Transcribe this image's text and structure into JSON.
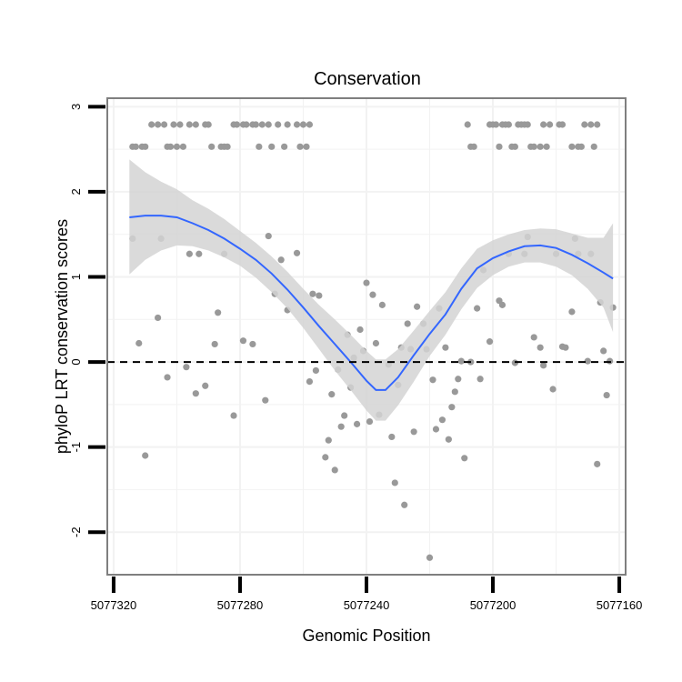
{
  "chart_data": {
    "type": "scatter",
    "title": "Conservation",
    "xlabel": "Genomic Position",
    "ylabel": "phyloP LRT conservation scores",
    "x_reversed": true,
    "xlim": [
      5077322,
      5077158
    ],
    "ylim": [
      -2.5,
      3.1
    ],
    "x_ticks": [
      5077320,
      5077280,
      5077240,
      5077200,
      5077160
    ],
    "x_tick_labels": [
      "5077320",
      "5077280",
      "5077240",
      "5077200",
      "5077160"
    ],
    "y_ticks": [
      -2,
      -1,
      0,
      1,
      2,
      3
    ],
    "y_tick_labels": [
      "-2",
      "-1",
      "0",
      "1",
      "2",
      "3"
    ],
    "reference_line": {
      "y": 0,
      "style": "dashed"
    },
    "grid": true,
    "colors": {
      "points": "#999999",
      "smooth_line": "#3366ff",
      "ribbon": "#d3d3d3",
      "grid": "#f2f2f2",
      "frame": "#7f7f7f"
    },
    "points": [
      {
        "x": 5077314,
        "y": 1.45
      },
      {
        "x": 5077312,
        "y": 0.22
      },
      {
        "x": 5077310,
        "y": -1.1
      },
      {
        "x": 5077306,
        "y": 0.52
      },
      {
        "x": 5077305,
        "y": 1.45
      },
      {
        "x": 5077303,
        "y": -0.18
      },
      {
        "x": 5077297,
        "y": -0.06
      },
      {
        "x": 5077296,
        "y": 1.27
      },
      {
        "x": 5077294,
        "y": -0.37
      },
      {
        "x": 5077293,
        "y": 1.27
      },
      {
        "x": 5077291,
        "y": -0.28
      },
      {
        "x": 5077288,
        "y": 0.21
      },
      {
        "x": 5077287,
        "y": 0.58
      },
      {
        "x": 5077285,
        "y": 1.27
      },
      {
        "x": 5077282,
        "y": -0.63
      },
      {
        "x": 5077279,
        "y": 0.25
      },
      {
        "x": 5077276,
        "y": 0.21
      },
      {
        "x": 5077272,
        "y": -0.45
      },
      {
        "x": 5077271,
        "y": 1.48
      },
      {
        "x": 5077269,
        "y": 0.8
      },
      {
        "x": 5077267,
        "y": 1.2
      },
      {
        "x": 5077265,
        "y": 0.61
      },
      {
        "x": 5077262,
        "y": 1.28
      },
      {
        "x": 5077258,
        "y": -0.23
      },
      {
        "x": 5077257,
        "y": 0.8
      },
      {
        "x": 5077256,
        "y": -0.1
      },
      {
        "x": 5077255,
        "y": 0.78
      },
      {
        "x": 5077253,
        "y": -1.12
      },
      {
        "x": 5077252,
        "y": -0.92
      },
      {
        "x": 5077251,
        "y": -0.38
      },
      {
        "x": 5077250,
        "y": -1.27
      },
      {
        "x": 5077249,
        "y": -0.09
      },
      {
        "x": 5077248,
        "y": -0.76
      },
      {
        "x": 5077247,
        "y": -0.63
      },
      {
        "x": 5077246,
        "y": 0.32
      },
      {
        "x": 5077245,
        "y": -0.3
      },
      {
        "x": 5077244,
        "y": 0.05
      },
      {
        "x": 5077243,
        "y": -0.73
      },
      {
        "x": 5077242,
        "y": 0.38
      },
      {
        "x": 5077241,
        "y": 0.13
      },
      {
        "x": 5077240,
        "y": 0.93
      },
      {
        "x": 5077239,
        "y": -0.7
      },
      {
        "x": 5077238,
        "y": 0.79
      },
      {
        "x": 5077237,
        "y": 0.22
      },
      {
        "x": 5077236,
        "y": -0.62
      },
      {
        "x": 5077235,
        "y": 0.67
      },
      {
        "x": 5077233,
        "y": -0.03
      },
      {
        "x": 5077232,
        "y": -0.88
      },
      {
        "x": 5077231,
        "y": -1.42
      },
      {
        "x": 5077230,
        "y": -0.27
      },
      {
        "x": 5077229,
        "y": 0.17
      },
      {
        "x": 5077228,
        "y": -1.68
      },
      {
        "x": 5077227,
        "y": 0.45
      },
      {
        "x": 5077226,
        "y": 0.15
      },
      {
        "x": 5077225,
        "y": -0.82
      },
      {
        "x": 5077224,
        "y": 0.65
      },
      {
        "x": 5077222,
        "y": 0.45
      },
      {
        "x": 5077221,
        "y": 0.15
      },
      {
        "x": 5077220,
        "y": -2.3
      },
      {
        "x": 5077219,
        "y": -0.21
      },
      {
        "x": 5077218,
        "y": -0.79
      },
      {
        "x": 5077217,
        "y": 0.63
      },
      {
        "x": 5077216,
        "y": -0.68
      },
      {
        "x": 5077215,
        "y": 0.17
      },
      {
        "x": 5077214,
        "y": -0.91
      },
      {
        "x": 5077213,
        "y": -0.53
      },
      {
        "x": 5077212,
        "y": -0.35
      },
      {
        "x": 5077211,
        "y": -0.2
      },
      {
        "x": 5077210,
        "y": 0.01
      },
      {
        "x": 5077209,
        "y": -1.13
      },
      {
        "x": 5077207,
        "y": 0.0
      },
      {
        "x": 5077205,
        "y": 0.63
      },
      {
        "x": 5077204,
        "y": -0.2
      },
      {
        "x": 5077203,
        "y": 1.08
      },
      {
        "x": 5077201,
        "y": 0.24
      },
      {
        "x": 5077198,
        "y": 0.72
      },
      {
        "x": 5077197,
        "y": 0.67
      },
      {
        "x": 5077195,
        "y": 1.27
      },
      {
        "x": 5077193,
        "y": -0.01
      },
      {
        "x": 5077190,
        "y": 1.27
      },
      {
        "x": 5077189,
        "y": 1.47
      },
      {
        "x": 5077187,
        "y": 0.29
      },
      {
        "x": 5077185,
        "y": 0.17
      },
      {
        "x": 5077184,
        "y": -0.04
      },
      {
        "x": 5077181,
        "y": -0.32
      },
      {
        "x": 5077180,
        "y": 1.27
      },
      {
        "x": 5077178,
        "y": 0.18
      },
      {
        "x": 5077177,
        "y": 0.17
      },
      {
        "x": 5077175,
        "y": 0.59
      },
      {
        "x": 5077174,
        "y": 1.45
      },
      {
        "x": 5077173,
        "y": 1.27
      },
      {
        "x": 5077170,
        "y": 0.01
      },
      {
        "x": 5077169,
        "y": 1.27
      },
      {
        "x": 5077167,
        "y": -1.2
      },
      {
        "x": 5077166,
        "y": 0.7
      },
      {
        "x": 5077165,
        "y": 0.13
      },
      {
        "x": 5077164,
        "y": -0.39
      },
      {
        "x": 5077163,
        "y": 0.01
      },
      {
        "x": 5077162,
        "y": 0.64
      },
      {
        "x": 5077314,
        "y": 2.53
      },
      {
        "x": 5077313,
        "y": 2.53
      },
      {
        "x": 5077311,
        "y": 2.53
      },
      {
        "x": 5077310,
        "y": 2.53
      },
      {
        "x": 5077308,
        "y": 2.79
      },
      {
        "x": 5077306,
        "y": 2.79
      },
      {
        "x": 5077304,
        "y": 2.79
      },
      {
        "x": 5077303,
        "y": 2.53
      },
      {
        "x": 5077302,
        "y": 2.53
      },
      {
        "x": 5077301,
        "y": 2.79
      },
      {
        "x": 5077300,
        "y": 2.53
      },
      {
        "x": 5077299,
        "y": 2.79
      },
      {
        "x": 5077298,
        "y": 2.53
      },
      {
        "x": 5077296,
        "y": 2.79
      },
      {
        "x": 5077294,
        "y": 2.79
      },
      {
        "x": 5077291,
        "y": 2.79
      },
      {
        "x": 5077290,
        "y": 2.79
      },
      {
        "x": 5077289,
        "y": 2.53
      },
      {
        "x": 5077286,
        "y": 2.53
      },
      {
        "x": 5077285,
        "y": 2.53
      },
      {
        "x": 5077284,
        "y": 2.53
      },
      {
        "x": 5077282,
        "y": 2.79
      },
      {
        "x": 5077281,
        "y": 2.79
      },
      {
        "x": 5077279,
        "y": 2.79
      },
      {
        "x": 5077278,
        "y": 2.79
      },
      {
        "x": 5077276,
        "y": 2.79
      },
      {
        "x": 5077275,
        "y": 2.79
      },
      {
        "x": 5077274,
        "y": 2.53
      },
      {
        "x": 5077273,
        "y": 2.79
      },
      {
        "x": 5077271,
        "y": 2.79
      },
      {
        "x": 5077270,
        "y": 2.53
      },
      {
        "x": 5077268,
        "y": 2.79
      },
      {
        "x": 5077266,
        "y": 2.53
      },
      {
        "x": 5077265,
        "y": 2.79
      },
      {
        "x": 5077262,
        "y": 2.79
      },
      {
        "x": 5077261,
        "y": 2.53
      },
      {
        "x": 5077260,
        "y": 2.79
      },
      {
        "x": 5077259,
        "y": 2.53
      },
      {
        "x": 5077258,
        "y": 2.79
      },
      {
        "x": 5077208,
        "y": 2.79
      },
      {
        "x": 5077207,
        "y": 2.53
      },
      {
        "x": 5077206,
        "y": 2.53
      },
      {
        "x": 5077201,
        "y": 2.79
      },
      {
        "x": 5077200,
        "y": 2.79
      },
      {
        "x": 5077199,
        "y": 2.79
      },
      {
        "x": 5077198,
        "y": 2.53
      },
      {
        "x": 5077197,
        "y": 2.79
      },
      {
        "x": 5077196,
        "y": 2.79
      },
      {
        "x": 5077195,
        "y": 2.79
      },
      {
        "x": 5077194,
        "y": 2.53
      },
      {
        "x": 5077193,
        "y": 2.53
      },
      {
        "x": 5077192,
        "y": 2.79
      },
      {
        "x": 5077191,
        "y": 2.79
      },
      {
        "x": 5077190,
        "y": 2.79
      },
      {
        "x": 5077189,
        "y": 2.79
      },
      {
        "x": 5077188,
        "y": 2.53
      },
      {
        "x": 5077187,
        "y": 2.53
      },
      {
        "x": 5077185,
        "y": 2.53
      },
      {
        "x": 5077184,
        "y": 2.79
      },
      {
        "x": 5077183,
        "y": 2.53
      },
      {
        "x": 5077182,
        "y": 2.79
      },
      {
        "x": 5077179,
        "y": 2.79
      },
      {
        "x": 5077178,
        "y": 2.79
      },
      {
        "x": 5077175,
        "y": 2.53
      },
      {
        "x": 5077173,
        "y": 2.53
      },
      {
        "x": 5077172,
        "y": 2.53
      },
      {
        "x": 5077171,
        "y": 2.79
      },
      {
        "x": 5077169,
        "y": 2.79
      },
      {
        "x": 5077168,
        "y": 2.53
      },
      {
        "x": 5077167,
        "y": 2.79
      }
    ],
    "smooth": {
      "x": [
        5077315,
        5077310,
        5077305,
        5077300,
        5077295,
        5077290,
        5077285,
        5077280,
        5077275,
        5077270,
        5077265,
        5077260,
        5077255,
        5077250,
        5077245,
        5077240,
        5077237,
        5077234,
        5077230,
        5077225,
        5077220,
        5077215,
        5077210,
        5077205,
        5077200,
        5077195,
        5077190,
        5077185,
        5077180,
        5077175,
        5077170,
        5077165,
        5077162
      ],
      "y": [
        1.7,
        1.72,
        1.72,
        1.7,
        1.63,
        1.55,
        1.45,
        1.33,
        1.2,
        1.04,
        0.85,
        0.64,
        0.42,
        0.21,
        0.0,
        -0.22,
        -0.33,
        -0.33,
        -0.18,
        0.08,
        0.33,
        0.56,
        0.86,
        1.1,
        1.22,
        1.3,
        1.36,
        1.37,
        1.34,
        1.26,
        1.16,
        1.05,
        0.98
      ],
      "lower": [
        1.03,
        1.2,
        1.31,
        1.37,
        1.36,
        1.31,
        1.23,
        1.13,
        0.99,
        0.82,
        0.63,
        0.4,
        0.15,
        -0.1,
        -0.33,
        -0.57,
        -0.69,
        -0.69,
        -0.51,
        -0.23,
        0.07,
        0.32,
        0.62,
        0.87,
        1.02,
        1.12,
        1.17,
        1.17,
        1.12,
        1.02,
        0.86,
        0.64,
        0.35
      ],
      "upper": [
        2.38,
        2.23,
        2.12,
        2.03,
        1.9,
        1.8,
        1.68,
        1.54,
        1.4,
        1.24,
        1.06,
        0.86,
        0.67,
        0.5,
        0.32,
        0.13,
        0.03,
        0.03,
        0.15,
        0.37,
        0.6,
        0.82,
        1.1,
        1.33,
        1.43,
        1.5,
        1.55,
        1.57,
        1.56,
        1.51,
        1.46,
        1.46,
        1.63
      ]
    }
  }
}
